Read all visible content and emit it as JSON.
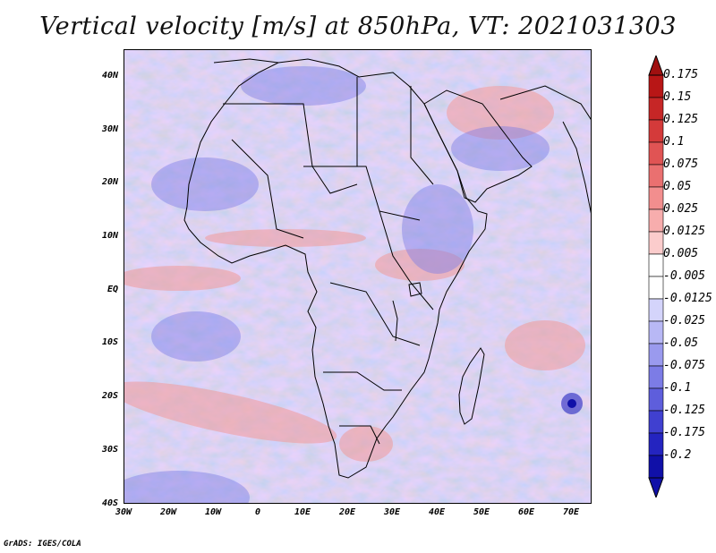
{
  "title": "Vertical velocity [m/s] at 850hPa, VT: 2021031303",
  "footer": "GrADS: IGES/COLA",
  "latitude_labels": [
    "40N",
    "30N",
    "20N",
    "10N",
    "EQ",
    "10S",
    "20S",
    "30S",
    "40S"
  ],
  "longitude_labels": [
    "30W",
    "20W",
    "10W",
    "0",
    "10E",
    "20E",
    "30E",
    "40E",
    "50E",
    "60E",
    "70E"
  ],
  "colorbar": {
    "labels": [
      "0.175",
      "0.15",
      "0.125",
      "0.1",
      "0.075",
      "0.05",
      "0.025",
      "0.0125",
      "0.005",
      "-0.005",
      "-0.0125",
      "-0.025",
      "-0.05",
      "-0.075",
      "-0.1",
      "-0.125",
      "-0.175",
      "-0.2"
    ],
    "colors": [
      "#b81616",
      "#c62626",
      "#d43a3a",
      "#e05454",
      "#ea7070",
      "#f28e8e",
      "#f7adad",
      "#fbcccc",
      "#ffffff",
      "#ffffff",
      "#d4d4fb",
      "#b8b8f5",
      "#9a9aee",
      "#7c7ce6",
      "#5e5edc",
      "#4040d0",
      "#2424c0",
      "#1010a8"
    ]
  }
}
